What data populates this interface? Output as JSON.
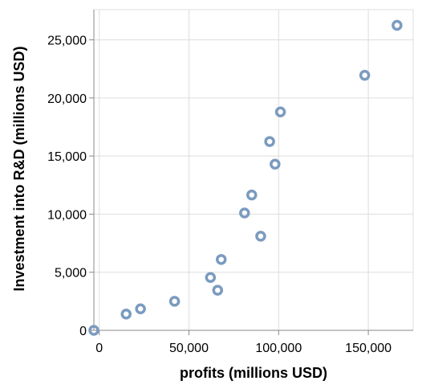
{
  "chart_data": {
    "type": "scatter",
    "xlabel": "profits (millions USD)",
    "ylabel": "Investment into R&D (millions USD)",
    "xlim": [
      0,
      175000
    ],
    "ylim": [
      0,
      27000
    ],
    "x_ticks": [
      0,
      50000,
      100000,
      150000
    ],
    "y_ticks": [
      0,
      5000,
      10000,
      15000,
      20000,
      25000
    ],
    "x_tick_labels": [
      "0",
      "50,000",
      "100,000",
      "150,000"
    ],
    "y_tick_labels": [
      "0",
      "5,000",
      "10,000",
      "15,000",
      "20,000",
      "25,000"
    ],
    "grid": true,
    "point_color": "#7b9bbf",
    "series": [
      {
        "points": [
          {
            "x": -3000,
            "y": 0
          },
          {
            "x": 15000,
            "y": 1400
          },
          {
            "x": 23000,
            "y": 1850
          },
          {
            "x": 42000,
            "y": 2500
          },
          {
            "x": 62000,
            "y": 4550
          },
          {
            "x": 66000,
            "y": 3450
          },
          {
            "x": 68000,
            "y": 6100
          },
          {
            "x": 81000,
            "y": 10100
          },
          {
            "x": 85000,
            "y": 11650
          },
          {
            "x": 90000,
            "y": 8100
          },
          {
            "x": 95000,
            "y": 16250
          },
          {
            "x": 98000,
            "y": 14300
          },
          {
            "x": 101000,
            "y": 18800
          },
          {
            "x": 148000,
            "y": 21950
          },
          {
            "x": 166000,
            "y": 26250
          }
        ]
      }
    ]
  }
}
